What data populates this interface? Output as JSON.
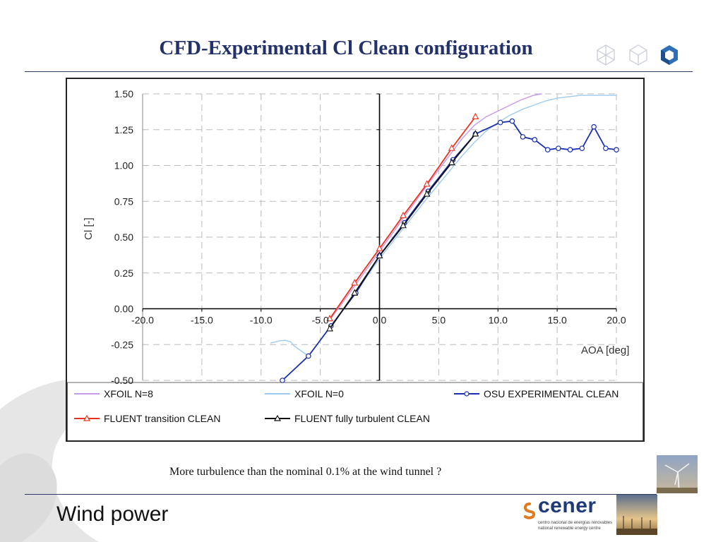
{
  "title": "CFD-Experimental Cl Clean configuration",
  "caption": "More turbulence than the nominal 0.1% at the wind tunnel ?",
  "footer": {
    "section": "Wind power"
  },
  "logo": {
    "word": "cener",
    "line1": "centro nacional de energías renovables",
    "line2": "national renewable energy centre"
  },
  "chart_data": {
    "type": "line",
    "xlabel": "AOA [deg]",
    "ylabel": "Cl [-]",
    "xlim": [
      -20,
      20
    ],
    "ylim": [
      -0.5,
      1.5
    ],
    "xticks": [
      "-20.0",
      "-15.0",
      "-10.0",
      "-5.0",
      "0.0",
      "5.0",
      "10.0",
      "15.0",
      "20.0"
    ],
    "yticks": [
      "1.50",
      "1.25",
      "1.00",
      "0.75",
      "0.50",
      "0.25",
      "0.00",
      "-0.25",
      "-0.50"
    ],
    "grid": true,
    "legend_position": "bottom",
    "series": [
      {
        "name": "XFOIL N=8",
        "color": "#c79be8",
        "marker": "none",
        "x": [
          -4.2,
          -2,
          0,
          2,
          4,
          6,
          7,
          8,
          9,
          10,
          11,
          12,
          13,
          13.7
        ],
        "y": [
          -0.08,
          0.17,
          0.4,
          0.63,
          0.86,
          1.08,
          1.19,
          1.28,
          1.34,
          1.38,
          1.42,
          1.46,
          1.49,
          1.5
        ]
      },
      {
        "name": "XFOIL N=0",
        "color": "#9ecbed",
        "marker": "none",
        "x": [
          -9.2,
          -8.5,
          -8,
          -7.5,
          -7.2,
          -6,
          -4,
          -2,
          0,
          2,
          4,
          6,
          7,
          8,
          9,
          10,
          11,
          12,
          13,
          14,
          15,
          16,
          17,
          18,
          19,
          20
        ],
        "y": [
          -0.24,
          -0.225,
          -0.22,
          -0.23,
          -0.26,
          -0.33,
          -0.11,
          0.12,
          0.35,
          0.56,
          0.77,
          0.97,
          1.07,
          1.16,
          1.24,
          1.3,
          1.35,
          1.39,
          1.42,
          1.45,
          1.47,
          1.48,
          1.49,
          1.49,
          1.49,
          1.49
        ]
      },
      {
        "name": "OSU EXPERIMENTAL CLEAN",
        "color": "#1b2fb0",
        "marker": "circle",
        "x": [
          -8.2,
          -6,
          -4.1,
          -2,
          0,
          2.1,
          4.1,
          6.2,
          8.1,
          10.2,
          11.2,
          12.1,
          13.1,
          14.2,
          15.1,
          16.1,
          17.1,
          18.1,
          19.1,
          20
        ],
        "y": [
          -0.5,
          -0.33,
          -0.12,
          0.11,
          0.37,
          0.6,
          0.82,
          1.04,
          1.22,
          1.3,
          1.31,
          1.2,
          1.18,
          1.11,
          1.12,
          1.11,
          1.12,
          1.27,
          1.12,
          1.11
        ]
      },
      {
        "name": "FLUENT transition CLEAN",
        "color": "#e8331f",
        "marker": "triangle",
        "x": [
          -4.2,
          -2.1,
          0,
          2,
          4,
          6.1,
          8.1
        ],
        "y": [
          -0.07,
          0.18,
          0.42,
          0.65,
          0.87,
          1.12,
          1.34
        ]
      },
      {
        "name": "FLUENT fully turbulent CLEAN",
        "color": "#111111",
        "marker": "triangle",
        "x": [
          -4.2,
          -2.1,
          0,
          2,
          4,
          6.1,
          8.1
        ],
        "y": [
          -0.14,
          0.11,
          0.37,
          0.58,
          0.8,
          1.02,
          1.22
        ]
      }
    ]
  }
}
